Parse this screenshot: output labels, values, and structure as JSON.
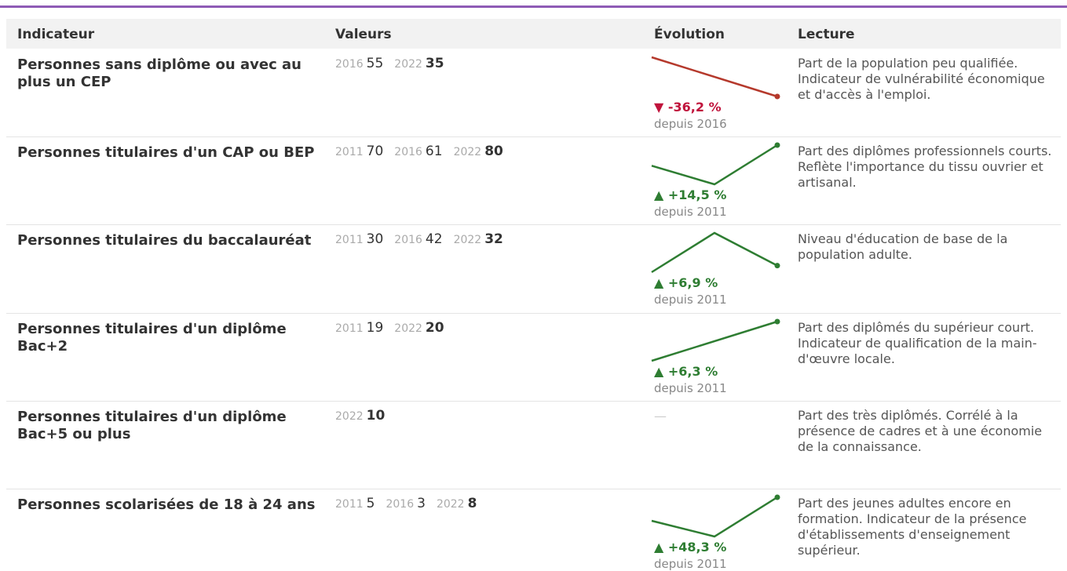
{
  "header": {
    "columns": [
      "Indicateur",
      "Valeurs",
      "Évolution",
      "Lecture"
    ]
  },
  "rows": [
    {
      "indicator": "Personnes sans diplôme ou avec au plus un CEP",
      "values": [
        {
          "year": "2016",
          "value": 55
        },
        {
          "year": "2022",
          "value": 35
        }
      ],
      "change": "▼ -36,2 %",
      "since": "depuis 2016",
      "color": "#c0143c",
      "line_color": "#b5392c",
      "reading": "Part de la population peu qualifiée. Indicateur de vulnérabilité économique et d'accès à l'emploi."
    },
    {
      "indicator": "Personnes titulaires d'un CAP ou BEP",
      "values": [
        {
          "year": "2011",
          "value": 70
        },
        {
          "year": "2016",
          "value": 61
        },
        {
          "year": "2022",
          "value": 80
        }
      ],
      "change": "▲ +14,5 %",
      "since": "depuis 2011",
      "color": "#2e7d32",
      "line_color": "#2e7d32",
      "reading": "Part des diplômes professionnels courts. Reflète l'importance du tissu ouvrier et artisanal."
    },
    {
      "indicator": "Personnes titulaires du baccalauréat",
      "values": [
        {
          "year": "2011",
          "value": 30
        },
        {
          "year": "2016",
          "value": 42
        },
        {
          "year": "2022",
          "value": 32
        }
      ],
      "change": "▲ +6,9 %",
      "since": "depuis 2011",
      "color": "#2e7d32",
      "line_color": "#2e7d32",
      "reading": "Niveau d'éducation de base de la population adulte."
    },
    {
      "indicator": "Personnes titulaires d'un diplôme Bac+2",
      "values": [
        {
          "year": "2011",
          "value": 19
        },
        {
          "year": "2022",
          "value": 20
        }
      ],
      "change": "▲ +6,3 %",
      "since": "depuis 2011",
      "color": "#2e7d32",
      "line_color": "#2e7d32",
      "reading": "Part des diplômés du supérieur court. Indicateur de qualification de la main-d'œuvre locale."
    },
    {
      "indicator": "Personnes titulaires d'un diplôme Bac+5 ou plus",
      "values": [
        {
          "year": "2022",
          "value": 10
        }
      ],
      "change": "—",
      "color": "#cccccc",
      "reading": "Part des très diplômés. Corrélé à la présence de cadres et à une économie de la connaissance."
    },
    {
      "indicator": "Personnes scolarisées de 18 à 24 ans",
      "values": [
        {
          "year": "2011",
          "value": 5
        },
        {
          "year": "2016",
          "value": 3
        },
        {
          "year": "2022",
          "value": 8
        }
      ],
      "change": "▲ +48,3 %",
      "since": "depuis 2011",
      "color": "#2e7d32",
      "line_color": "#2e7d32",
      "reading": "Part des jeunes adultes encore en formation. Indicateur de la présence d'établissements d'enseignement supérieur."
    }
  ]
}
